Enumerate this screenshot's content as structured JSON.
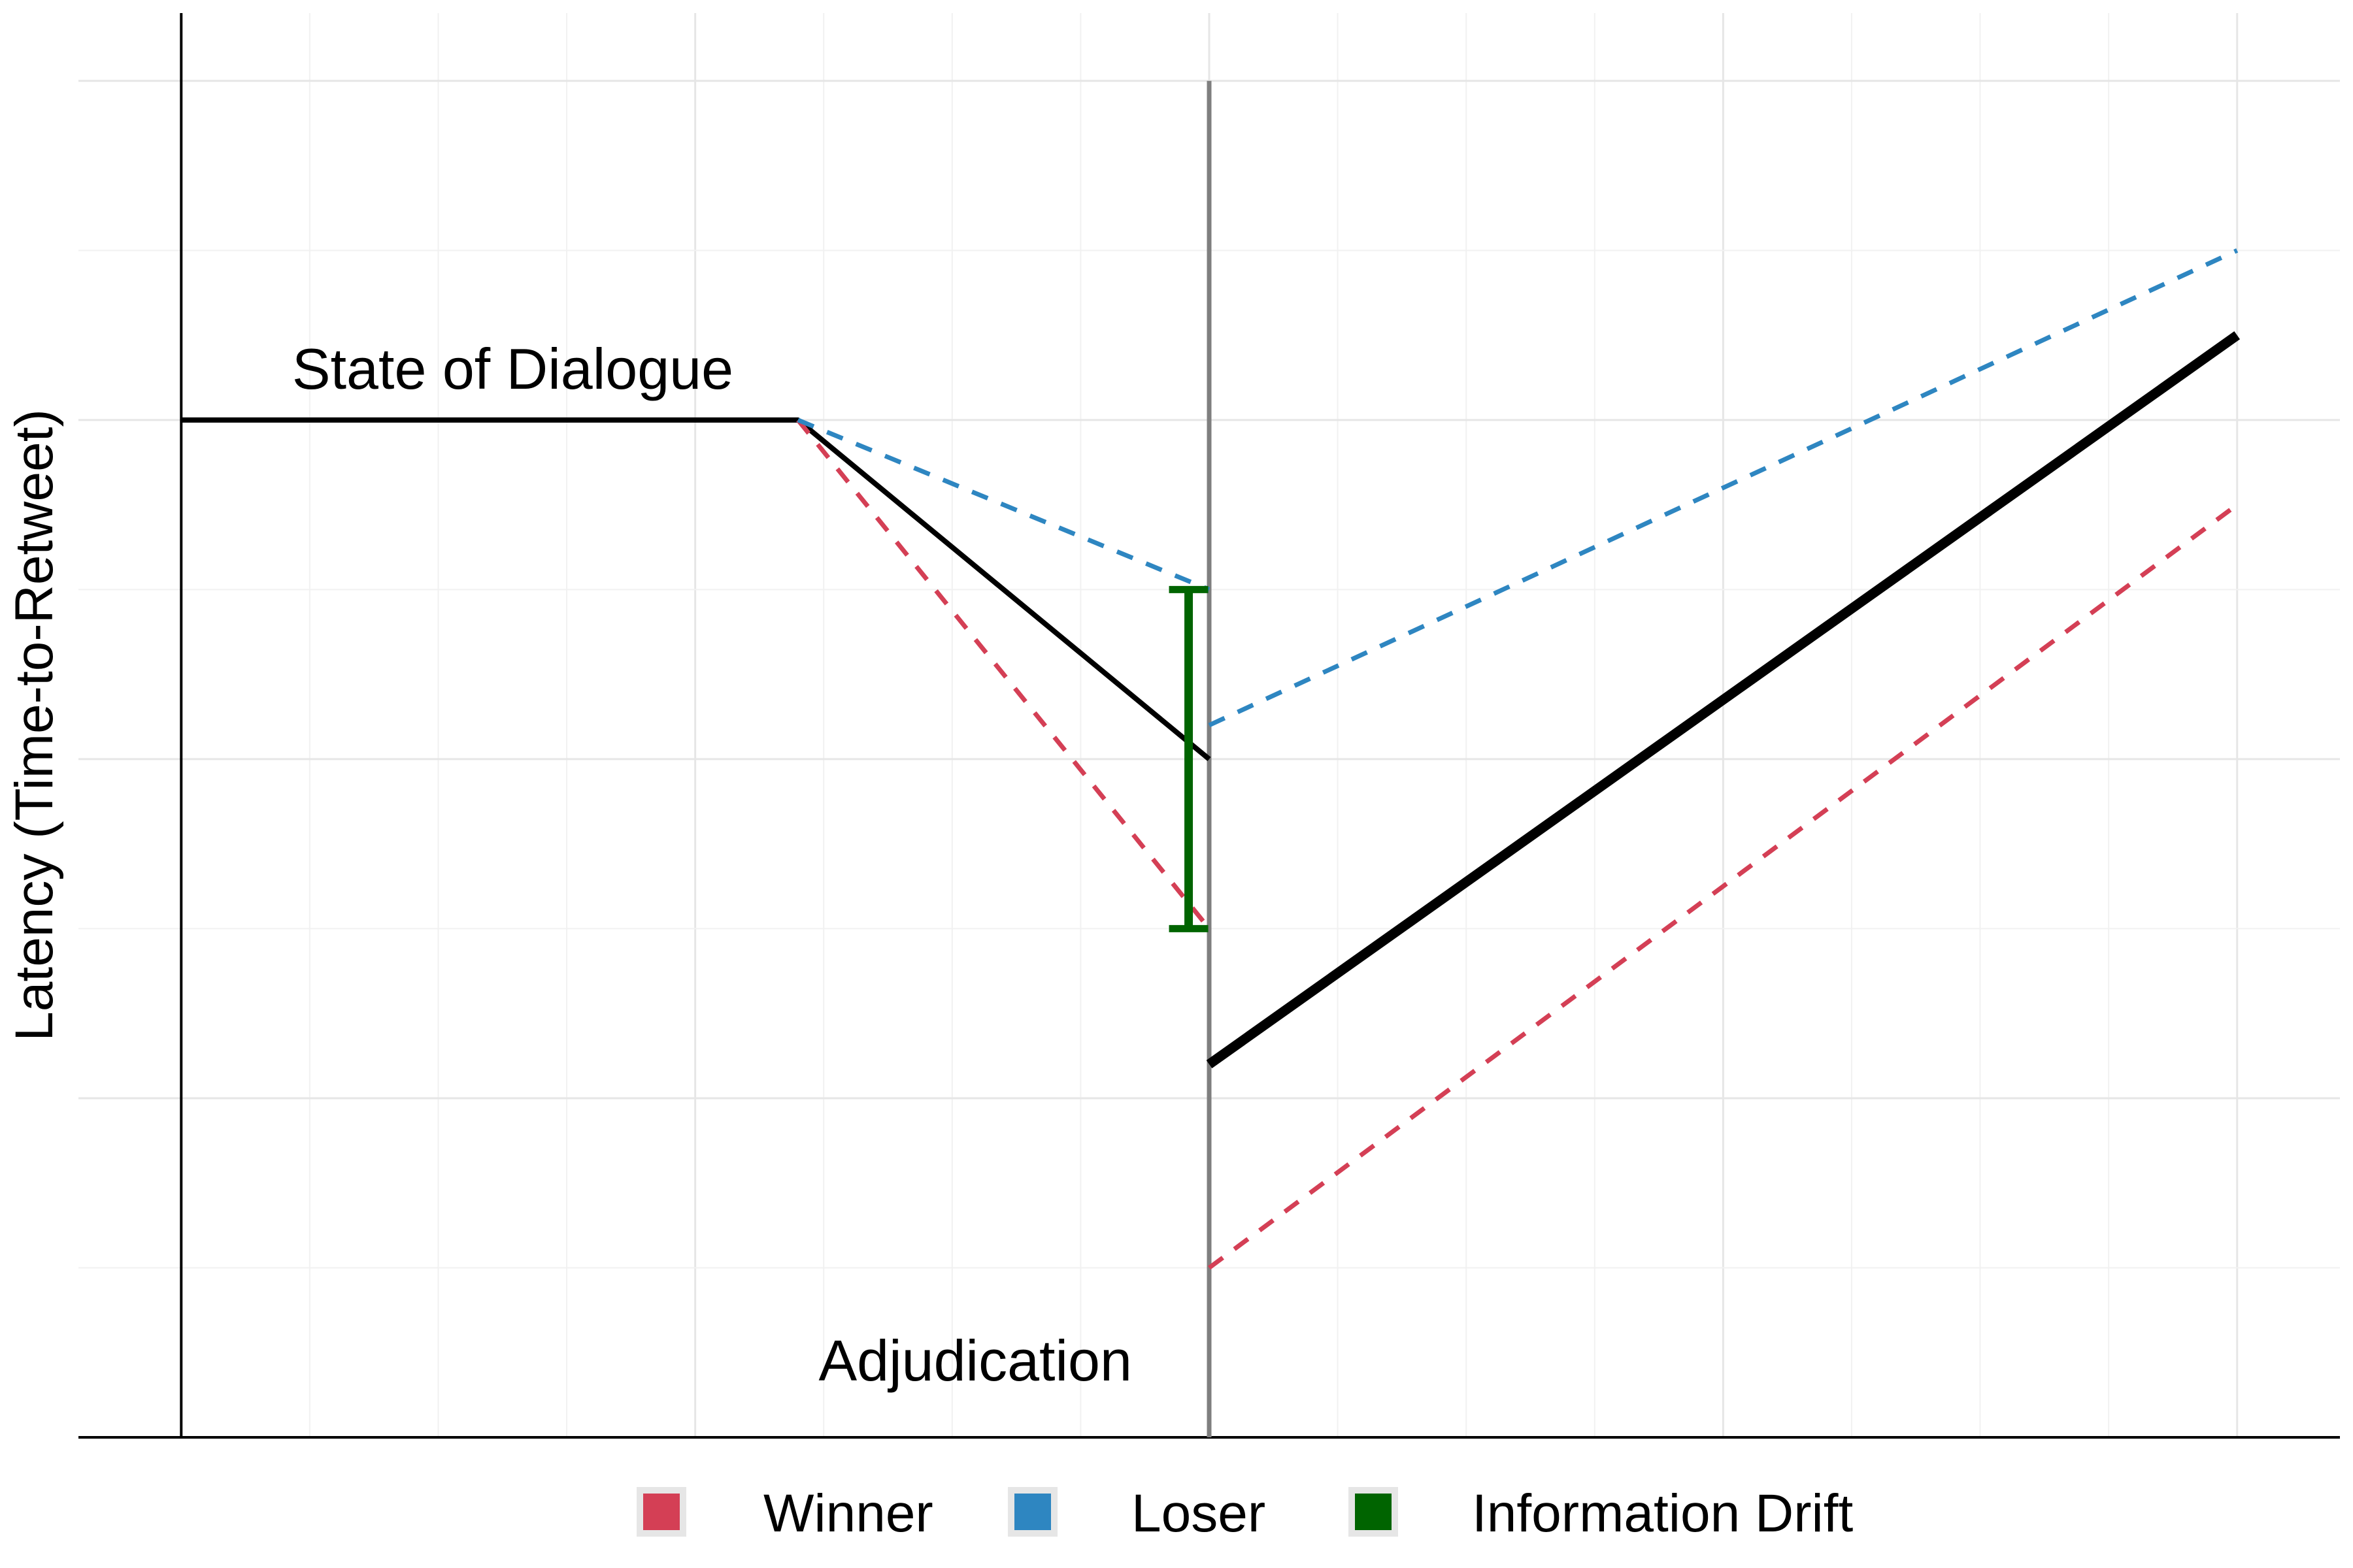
{
  "chart_data": {
    "type": "line",
    "title": "",
    "xlabel": "",
    "ylabel": "Latency (Time-to-Retweet)",
    "xlim": [
      -0.4,
      8.4
    ],
    "ylim": [
      0,
      8.4
    ],
    "grid": true,
    "legend_position": "bottom",
    "adjudication_x": 4,
    "series": [
      {
        "key": "state",
        "color": "#000000",
        "style": "solid",
        "segments": [
          [
            [
              0,
              6
            ],
            [
              2.4,
              6
            ],
            [
              4,
              4
            ]
          ]
        ]
      },
      {
        "key": "post",
        "color": "#000000",
        "style": "solid-thick",
        "segments": [
          [
            [
              4,
              2.2
            ],
            [
              8,
              6.5
            ]
          ]
        ]
      },
      {
        "name": "Winner",
        "key": "winner",
        "color": "#D43F55",
        "style": "dashed",
        "segments": [
          [
            [
              2.4,
              6
            ],
            [
              4,
              3
            ]
          ],
          [
            [
              4,
              1
            ],
            [
              8,
              5.5
            ]
          ]
        ]
      },
      {
        "name": "Loser",
        "key": "loser",
        "color": "#2E86C1",
        "style": "dashed",
        "segments": [
          [
            [
              2.4,
              6
            ],
            [
              4,
              5
            ]
          ],
          [
            [
              4,
              4.2
            ],
            [
              8,
              7
            ]
          ]
        ]
      }
    ],
    "error_bar": {
      "name": "Information Drift",
      "color": "#006400",
      "x": 3.92,
      "y_low": 3,
      "y_high": 5
    },
    "annotations": [
      {
        "key": "state",
        "text": "State of Dialogue",
        "x": 1.29,
        "y": 6.3
      },
      {
        "key": "adjudication",
        "text": "Adjudication",
        "x": 3.09,
        "y": 0.45
      }
    ],
    "legend": [
      {
        "label": "Winner",
        "color": "#D43F55"
      },
      {
        "label": "Loser",
        "color": "#2E86C1"
      },
      {
        "label": "Information Drift",
        "color": "#006400"
      }
    ]
  }
}
